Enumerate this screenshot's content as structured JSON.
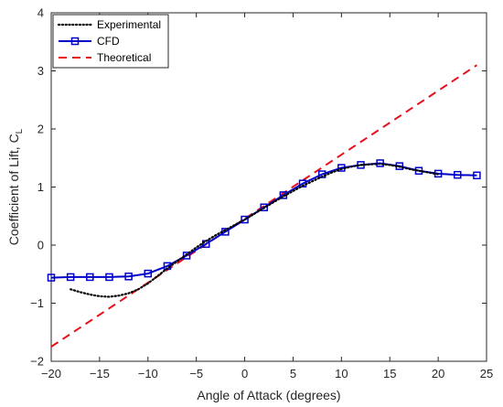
{
  "chart_data": {
    "type": "line",
    "xlabel": "Angle of Attack (degrees)",
    "ylabel_main": "Coefficient of Lift, C",
    "ylabel_sub": "L",
    "xlim": [
      -20,
      25
    ],
    "ylim": [
      -2,
      4
    ],
    "xticks": [
      -20,
      -15,
      -10,
      -5,
      0,
      5,
      10,
      15,
      20,
      25
    ],
    "yticks": [
      -2,
      -1,
      0,
      1,
      2,
      3,
      4
    ],
    "grid": false,
    "legend_position": "top-left",
    "series": [
      {
        "name": "Experimental",
        "style": "dotted",
        "color": "#000000",
        "x": [
          -18,
          -17,
          -16,
          -15,
          -14,
          -13,
          -12,
          -11,
          -10,
          -9,
          -8,
          -7,
          -6,
          -5,
          -4,
          -3,
          -2,
          -1,
          0,
          1,
          2,
          3,
          4,
          5,
          6,
          7,
          8,
          9,
          10,
          11,
          12,
          13,
          14,
          15,
          16,
          17,
          18,
          19,
          20
        ],
        "y": [
          -0.76,
          -0.81,
          -0.85,
          -0.88,
          -0.89,
          -0.87,
          -0.83,
          -0.76,
          -0.66,
          -0.53,
          -0.4,
          -0.28,
          -0.16,
          -0.04,
          0.07,
          0.17,
          0.26,
          0.35,
          0.44,
          0.54,
          0.64,
          0.74,
          0.84,
          0.93,
          1.02,
          1.1,
          1.18,
          1.25,
          1.31,
          1.35,
          1.38,
          1.39,
          1.4,
          1.38,
          1.35,
          1.31,
          1.28,
          1.25,
          1.22
        ]
      },
      {
        "name": "CFD",
        "style": "solid-square",
        "color": "#0000cc",
        "x": [
          -20,
          -18,
          -16,
          -14,
          -12,
          -10,
          -8,
          -6,
          -4,
          -2,
          0,
          2,
          4,
          6,
          8,
          10,
          12,
          14,
          16,
          18,
          20,
          22,
          24
        ],
        "y": [
          -0.56,
          -0.55,
          -0.55,
          -0.55,
          -0.54,
          -0.49,
          -0.36,
          -0.18,
          0.02,
          0.23,
          0.44,
          0.65,
          0.86,
          1.06,
          1.22,
          1.33,
          1.38,
          1.41,
          1.36,
          1.28,
          1.23,
          1.21,
          1.2
        ]
      },
      {
        "name": "Theoretical",
        "style": "dashed",
        "color": "#e8101c",
        "x": [
          -20,
          24
        ],
        "y": [
          -1.75,
          3.1
        ]
      }
    ]
  }
}
